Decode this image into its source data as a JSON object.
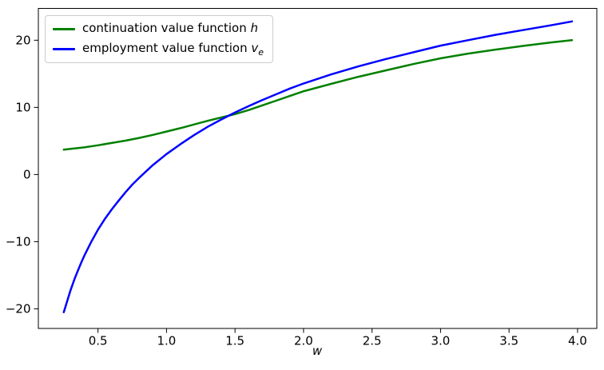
{
  "chart_data": {
    "type": "line",
    "title": "",
    "xlabel": "w",
    "ylabel": "",
    "grid": false,
    "legend_position": "upper-left",
    "xlim": [
      0.0645,
      4.1405
    ],
    "ylim": [
      -22.92,
      24.74
    ],
    "xticks": {
      "values": [
        0.5,
        1.0,
        1.5,
        2.0,
        2.5,
        3.0,
        3.5,
        4.0
      ],
      "labels": [
        "0.5",
        "1.0",
        "1.5",
        "2.0",
        "2.5",
        "3.0",
        "3.5",
        "4.0"
      ]
    },
    "yticks": {
      "values": [
        -20,
        -10,
        0,
        10,
        20
      ],
      "labels": [
        "−20",
        "−10",
        "0",
        "10",
        "20"
      ]
    },
    "series": [
      {
        "name": "continuation value function h",
        "color": "#008000",
        "points": [
          [
            0.25,
            3.7
          ],
          [
            0.4,
            4.05
          ],
          [
            0.5,
            4.35
          ],
          [
            0.6,
            4.7
          ],
          [
            0.7,
            5.05
          ],
          [
            0.8,
            5.45
          ],
          [
            0.9,
            5.9
          ],
          [
            1.0,
            6.4
          ],
          [
            1.1,
            6.9
          ],
          [
            1.2,
            7.45
          ],
          [
            1.3,
            8.0
          ],
          [
            1.4,
            8.5
          ],
          [
            1.5,
            9.0
          ],
          [
            1.6,
            9.6
          ],
          [
            1.7,
            10.3
          ],
          [
            1.8,
            11.0
          ],
          [
            1.9,
            11.7
          ],
          [
            2.0,
            12.4
          ],
          [
            2.2,
            13.5
          ],
          [
            2.4,
            14.55
          ],
          [
            2.6,
            15.5
          ],
          [
            2.8,
            16.45
          ],
          [
            3.0,
            17.3
          ],
          [
            3.2,
            18.0
          ],
          [
            3.4,
            18.6
          ],
          [
            3.6,
            19.15
          ],
          [
            3.8,
            19.65
          ],
          [
            3.96,
            20.0
          ]
        ]
      },
      {
        "name": "employment value function v_e",
        "color": "#0000ff",
        "points": [
          [
            0.25,
            -20.5
          ],
          [
            0.28,
            -18.5
          ],
          [
            0.3,
            -17.2
          ],
          [
            0.33,
            -15.5
          ],
          [
            0.35,
            -14.45
          ],
          [
            0.38,
            -13.0
          ],
          [
            0.4,
            -12.1
          ],
          [
            0.45,
            -10.05
          ],
          [
            0.5,
            -8.2
          ],
          [
            0.55,
            -6.6
          ],
          [
            0.6,
            -5.2
          ],
          [
            0.65,
            -3.9
          ],
          [
            0.7,
            -2.65
          ],
          [
            0.75,
            -1.5
          ],
          [
            0.8,
            -0.5
          ],
          [
            0.9,
            1.4
          ],
          [
            1.0,
            3.05
          ],
          [
            1.1,
            4.5
          ],
          [
            1.2,
            5.85
          ],
          [
            1.3,
            7.1
          ],
          [
            1.4,
            8.2
          ],
          [
            1.5,
            9.25
          ],
          [
            1.6,
            10.2
          ],
          [
            1.7,
            11.1
          ],
          [
            1.8,
            11.95
          ],
          [
            1.9,
            12.8
          ],
          [
            2.0,
            13.55
          ],
          [
            2.2,
            14.9
          ],
          [
            2.4,
            16.1
          ],
          [
            2.6,
            17.2
          ],
          [
            2.8,
            18.2
          ],
          [
            3.0,
            19.2
          ],
          [
            3.2,
            20.0
          ],
          [
            3.4,
            20.8
          ],
          [
            3.6,
            21.5
          ],
          [
            3.8,
            22.2
          ],
          [
            3.96,
            22.8
          ]
        ]
      }
    ]
  },
  "legend": {
    "items": [
      {
        "label": "continuation value function ",
        "symbol": "h",
        "symbol_sub": ""
      },
      {
        "label": "employment value function ",
        "symbol": "v",
        "symbol_sub": "e"
      }
    ]
  },
  "axis": {
    "xlabel": "w"
  }
}
